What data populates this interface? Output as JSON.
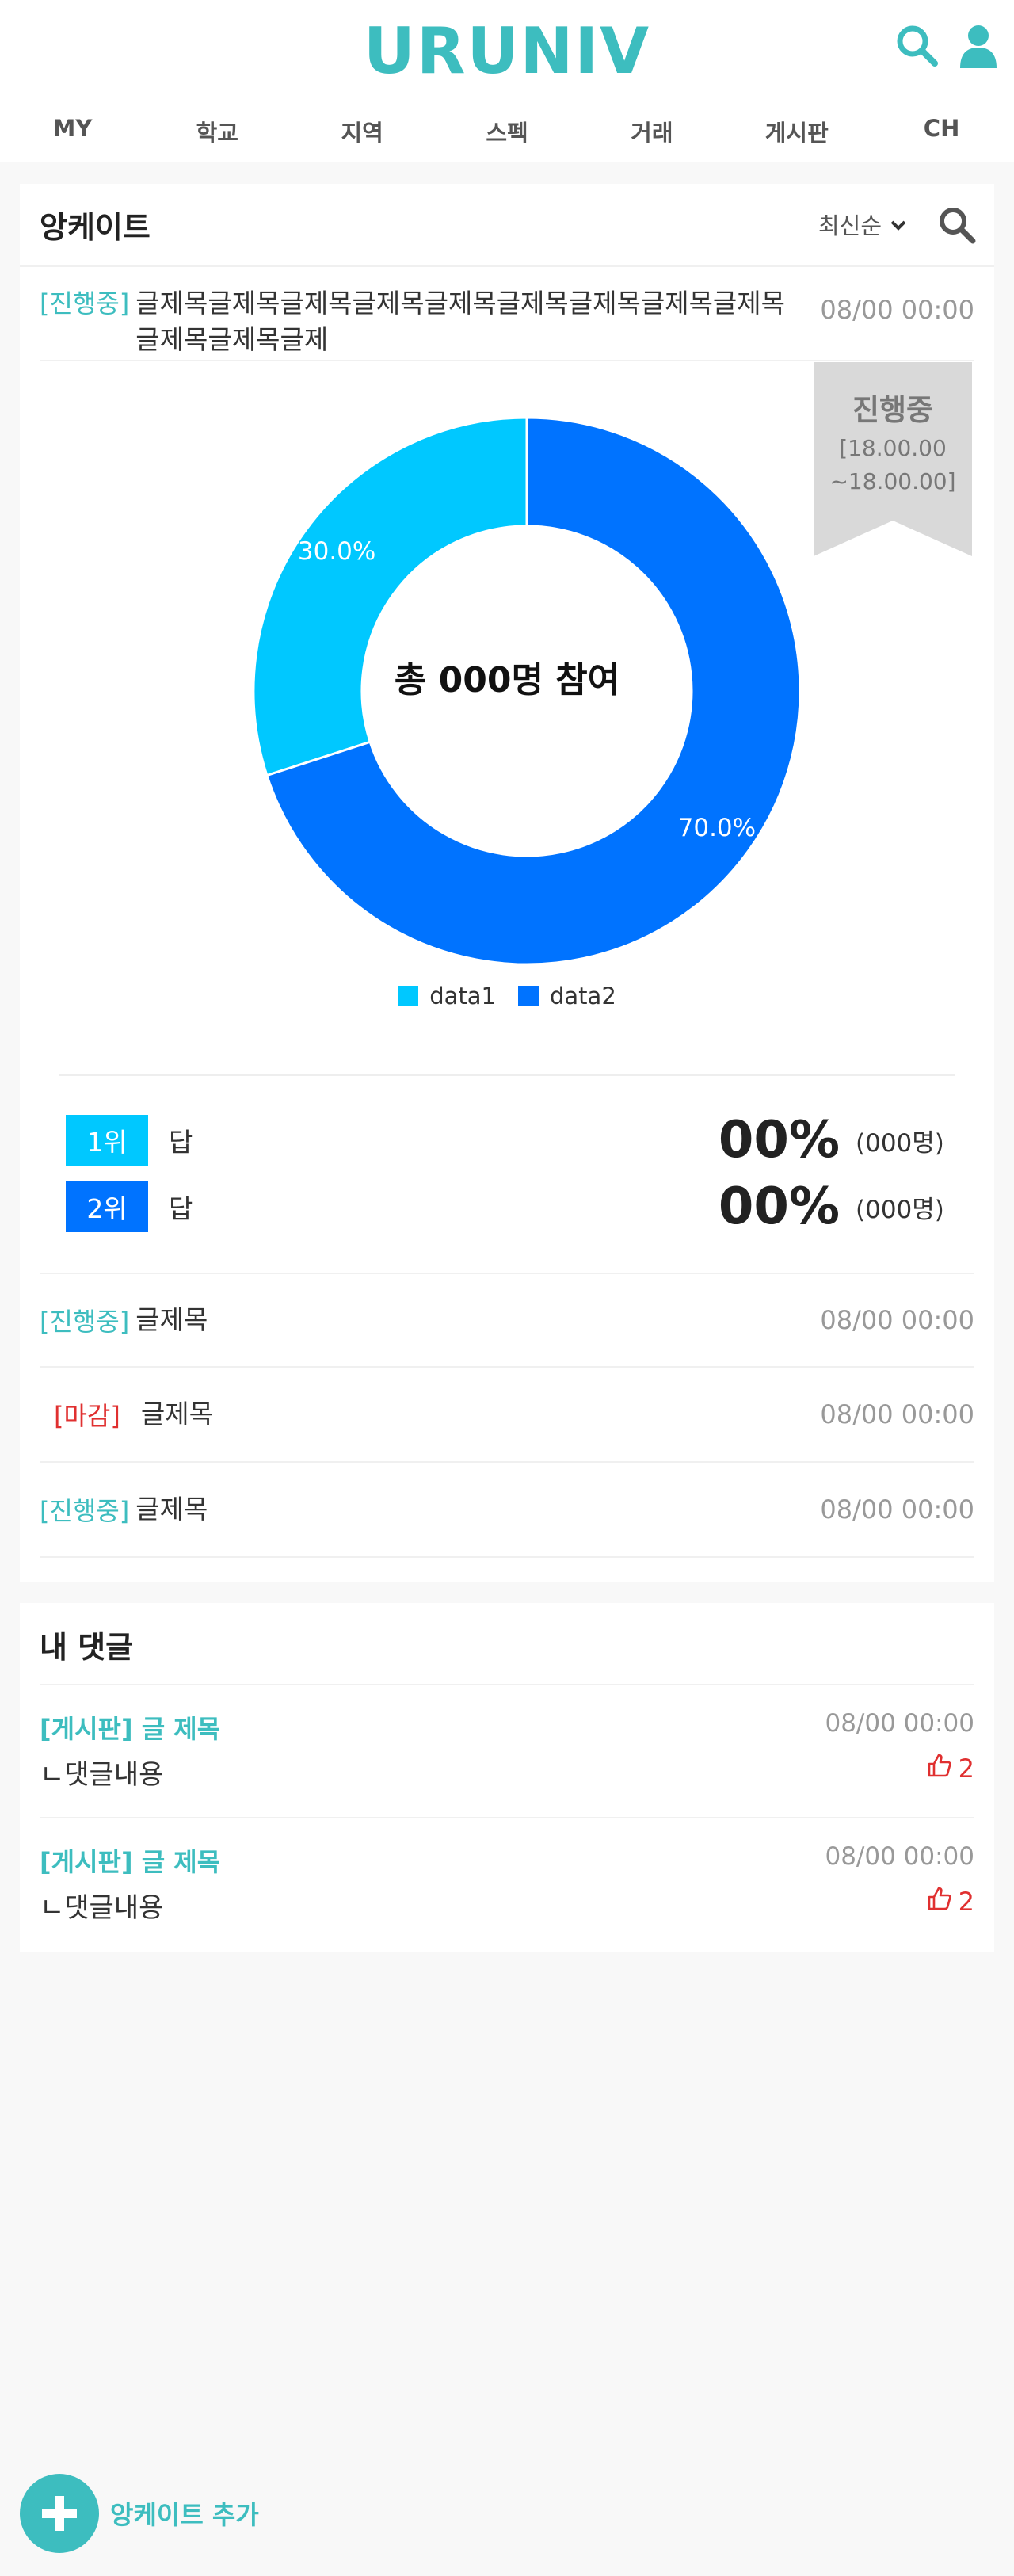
{
  "header": {
    "logo": "URUNIV",
    "nav": [
      "MY",
      "학교",
      "지역",
      "스펙",
      "거래",
      "게시판",
      "CH"
    ],
    "icons": [
      "search-icon",
      "user-icon"
    ]
  },
  "survey": {
    "title": "앙케이트",
    "sort_label": "최신순",
    "posts": [
      {
        "tag": "[진행중]",
        "title": "글제목글제목글제목글제목글제목글제목글제목글제목글제목글제목글제목글제",
        "date": "08/00 00:00"
      },
      {
        "tag": "[진행중]",
        "title": "글제목",
        "date": "08/00 00:00"
      },
      {
        "tag": "[마감]",
        "title": "글제목",
        "date": "08/00 00:00"
      },
      {
        "tag": "[진행중]",
        "title": "글제목",
        "date": "08/00 00:00"
      }
    ],
    "ribbon": {
      "status": "진행중",
      "range_start": "[18.00.00",
      "range_end": "~18.00.00]"
    },
    "center_text": "총 000명 참여",
    "ranks": [
      {
        "badge": "1위",
        "answer": "답",
        "percent": "00%",
        "count": "(000명)",
        "color": "#00c8ff"
      },
      {
        "badge": "2위",
        "answer": "답",
        "percent": "00%",
        "count": "(000명)",
        "color": "#0073ff"
      }
    ]
  },
  "chart_data": {
    "type": "pie",
    "categories": [
      "data1",
      "data2"
    ],
    "values": [
      30.0,
      70.0
    ],
    "labels": [
      "30.0%",
      "70.0%"
    ],
    "colors": [
      "#00c8ff",
      "#0073ff"
    ],
    "donut": true,
    "legend": "bottom"
  },
  "comments": {
    "title": "내 댓글",
    "items": [
      {
        "title": "[게시판] 글 제목",
        "date": "08/00 00:00",
        "body": "ㄴ댓글내용",
        "likes": "2"
      },
      {
        "title": "[게시판] 글 제목",
        "date": "08/00 00:00",
        "body": "ㄴ댓글내용",
        "likes": "2"
      }
    ]
  },
  "fab": {
    "label": "앙케이트 추가"
  }
}
